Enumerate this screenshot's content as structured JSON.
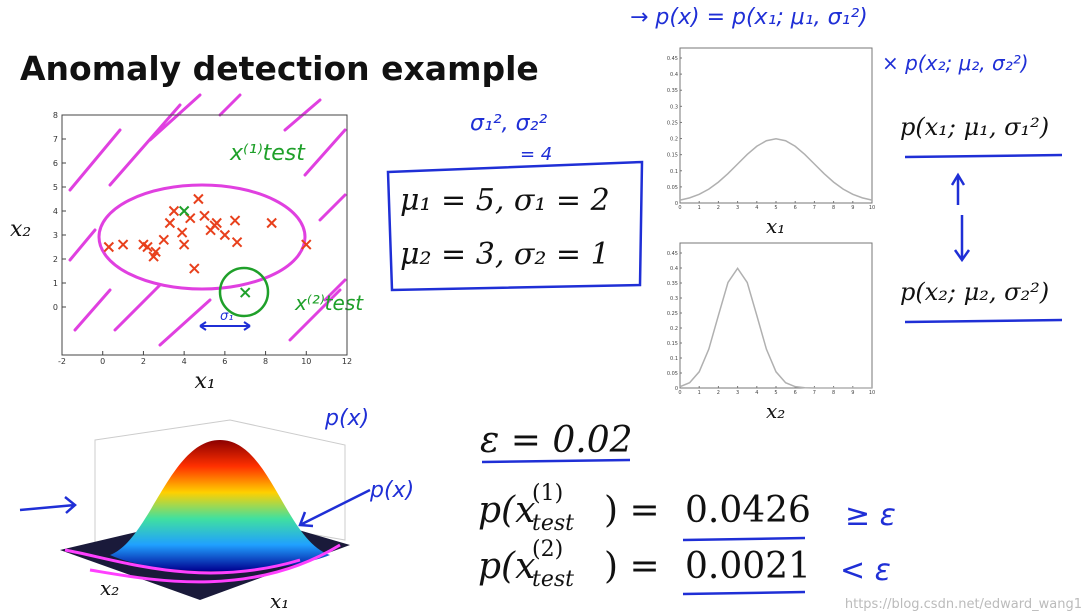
{
  "title": "Anomaly detection example",
  "scatter": {
    "type": "scatter",
    "xlim": [
      -2,
      12
    ],
    "ylim": [
      -2,
      8
    ],
    "xticks": [
      -2,
      0,
      2,
      4,
      6,
      8,
      10,
      12
    ],
    "yticks": [
      0,
      1,
      2,
      3,
      4,
      5,
      6,
      7,
      8
    ],
    "xlabel": "x₁",
    "ylabel": "x₂",
    "series": [
      {
        "color": "#e8401c",
        "x": [
          0.3,
          1,
          2,
          2.2,
          2.5,
          2.6,
          3,
          3.3,
          3.5,
          3.9,
          4,
          4.5,
          4.3,
          4.7,
          5,
          5.3,
          5.5,
          5.6,
          6,
          6.5,
          6.6,
          8.3,
          10
        ],
        "y": [
          2.5,
          2.6,
          2.6,
          2.5,
          2.1,
          2.3,
          2.8,
          3.5,
          4,
          3.1,
          2.6,
          1.6,
          3.7,
          4.5,
          3.8,
          3.2,
          3.4,
          3.5,
          3,
          3.6,
          2.7,
          3.5,
          2.6
        ]
      },
      {
        "color": "#1fa02a",
        "x": [
          4,
          7
        ],
        "y": [
          4,
          0.6
        ]
      }
    ]
  },
  "curves": [
    {
      "type": "line",
      "xlim": [
        0,
        10
      ],
      "ylim": [
        0,
        0.45
      ],
      "xticks": [
        0,
        1,
        2,
        3,
        4,
        5,
        6,
        7,
        8,
        9,
        10
      ],
      "yticks": [
        0,
        0.05,
        0.1,
        0.15,
        0.2,
        0.25,
        0.3,
        0.35,
        0.4,
        0.45
      ],
      "xlabel": "x₁",
      "color": "#b0b0b0",
      "x": [
        0,
        0.5,
        1,
        1.5,
        2,
        2.5,
        3,
        3.5,
        4,
        4.5,
        5,
        5.5,
        6,
        6.5,
        7,
        7.5,
        8,
        8.5,
        9,
        9.5,
        10
      ],
      "values": [
        0.0088,
        0.0159,
        0.027,
        0.0431,
        0.0648,
        0.0913,
        0.121,
        0.1506,
        0.176,
        0.1933,
        0.1995,
        0.1933,
        0.176,
        0.1506,
        0.121,
        0.0913,
        0.0648,
        0.0431,
        0.027,
        0.0159,
        0.0088
      ]
    },
    {
      "type": "line",
      "xlim": [
        0,
        10
      ],
      "ylim": [
        0,
        0.45
      ],
      "xticks": [
        0,
        1,
        2,
        3,
        4,
        5,
        6,
        7,
        8,
        9,
        10
      ],
      "yticks": [
        0,
        0.05,
        0.1,
        0.15,
        0.2,
        0.25,
        0.3,
        0.35,
        0.4,
        0.45
      ],
      "xlabel": "x₂",
      "color": "#b0b0b0",
      "x": [
        0,
        0.5,
        1,
        1.5,
        2,
        2.5,
        3,
        3.5,
        4,
        4.5,
        5,
        5.5,
        6,
        6.5,
        7,
        7.5,
        8,
        8.5,
        9,
        9.5,
        10
      ],
      "values": [
        0.0044,
        0.0175,
        0.054,
        0.1295,
        0.242,
        0.352,
        0.3989,
        0.352,
        0.242,
        0.1295,
        0.054,
        0.0175,
        0.0044,
        0.0009,
        0.0001,
        0,
        0,
        0,
        0,
        0,
        0
      ]
    }
  ],
  "surface": {
    "xlabel": "x₂",
    "ylabel": "x₁"
  },
  "equations": {
    "mu1": "μ₁ = 5, σ₁ = 2",
    "mu2": "μ₂ = 3, σ₂ = 1",
    "epsilon": "ε = 0.02",
    "p1": {
      "open": "p(x",
      "sup": "(1)",
      "sub": "test",
      "close": ") =",
      "value": "0.0426"
    },
    "p2": {
      "open": "p(x",
      "sup": "(2)",
      "sub": "test",
      "close": ") =",
      "value": "0.0021"
    },
    "px1": "p(x₁; μ₁, σ₁²)",
    "px2": "p(x₂; μ₂, σ₂²)"
  },
  "annotations": {
    "product1": "→ p(x) = p(x₁; μ₁, σ₁²)",
    "product2": "× p(x₂; μ₂, σ₂²)",
    "sigmas": "σ₁², σ₂²",
    "four": "= 4",
    "test1": "x⁽¹⁾test",
    "test2": "x⁽²⁾test",
    "s1": "σ₁",
    "px_top": "p(x)",
    "px_side": "p(x)",
    "ge": "≥ ε",
    "lt": "< ε"
  },
  "watermark": "https://blog.csdn.net/edward_wang1"
}
